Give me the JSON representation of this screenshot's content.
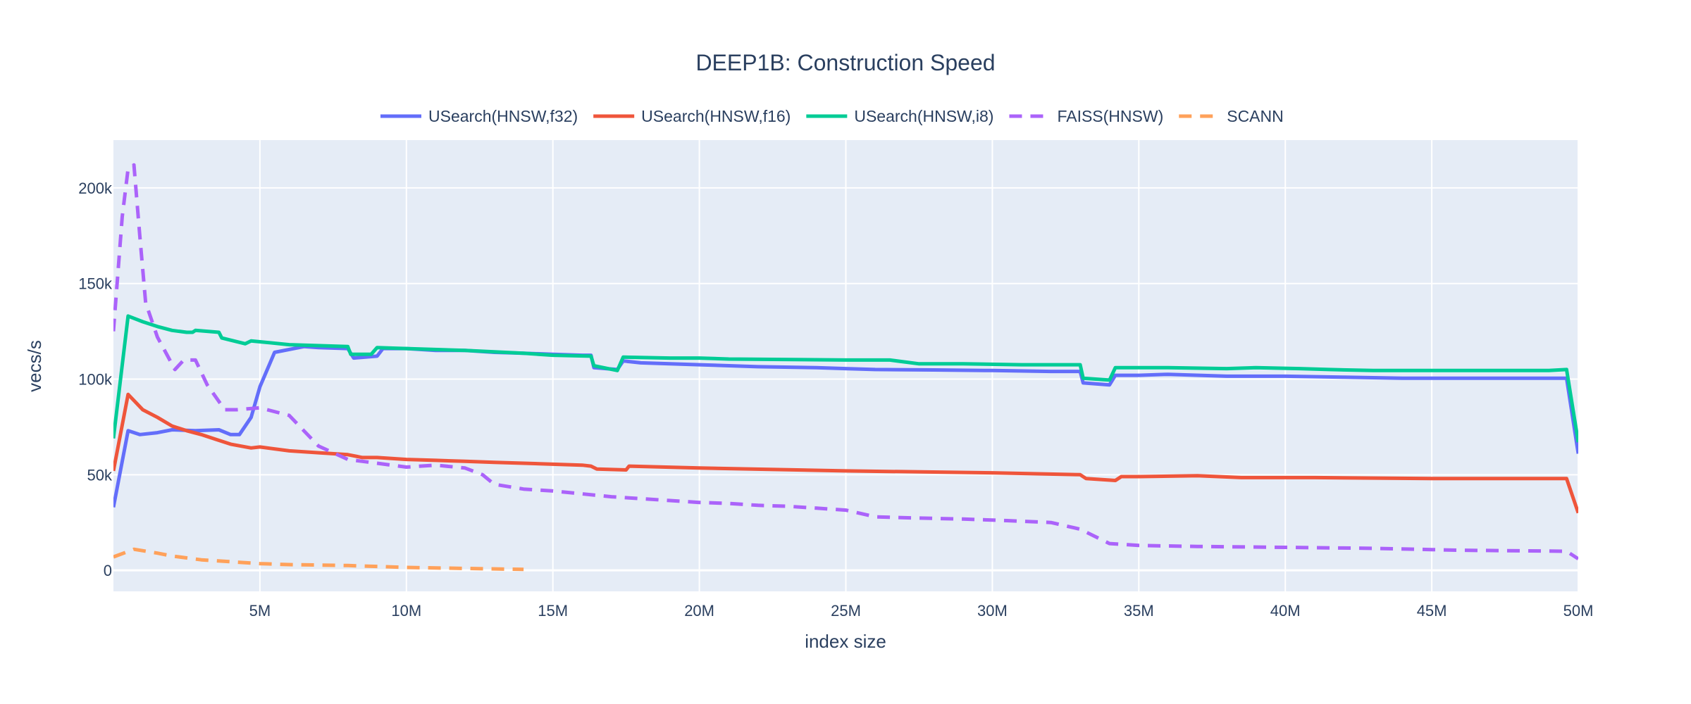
{
  "chart_data": {
    "type": "line",
    "title": "DEEP1B: Construction Speed",
    "xlabel": "index size",
    "ylabel": "vecs/s",
    "xlim": [
      0,
      50000000
    ],
    "ylim": [
      -11000,
      225000
    ],
    "xticks": [
      5000000,
      10000000,
      15000000,
      20000000,
      25000000,
      30000000,
      35000000,
      40000000,
      45000000,
      50000000
    ],
    "xtick_labels": [
      "5M",
      "10M",
      "15M",
      "20M",
      "25M",
      "30M",
      "35M",
      "40M",
      "45M",
      "50M"
    ],
    "yticks": [
      0,
      50000,
      100000,
      150000,
      200000
    ],
    "ytick_labels": [
      "0",
      "50k",
      "100k",
      "150k",
      "200k"
    ],
    "grid": true,
    "legend_position": "top-center",
    "series": [
      {
        "name": "USearch(HNSW,f32)",
        "color": "#636efa",
        "dash": "solid",
        "points": [
          [
            0,
            33000
          ],
          [
            500000,
            73000
          ],
          [
            900000,
            71000
          ],
          [
            1500000,
            72000
          ],
          [
            2000000,
            73500
          ],
          [
            2800000,
            73000
          ],
          [
            3600000,
            73500
          ],
          [
            4000000,
            71000
          ],
          [
            4300000,
            71000
          ],
          [
            4700000,
            80000
          ],
          [
            5000000,
            96000
          ],
          [
            5500000,
            114000
          ],
          [
            6500000,
            117000
          ],
          [
            7000000,
            116500
          ],
          [
            8000000,
            116000
          ],
          [
            8200000,
            111000
          ],
          [
            9000000,
            112000
          ],
          [
            9200000,
            116000
          ],
          [
            10000000,
            116000
          ],
          [
            11000000,
            115000
          ],
          [
            12000000,
            115000
          ],
          [
            13000000,
            114000
          ],
          [
            14000000,
            113500
          ],
          [
            15000000,
            113000
          ],
          [
            16000000,
            112500
          ],
          [
            16300000,
            112500
          ],
          [
            16400000,
            106000
          ],
          [
            17200000,
            105000
          ],
          [
            17400000,
            109500
          ],
          [
            18000000,
            108500
          ],
          [
            19000000,
            108000
          ],
          [
            20000000,
            107500
          ],
          [
            22000000,
            106500
          ],
          [
            24000000,
            106000
          ],
          [
            25000000,
            105500
          ],
          [
            26000000,
            105000
          ],
          [
            28000000,
            104800
          ],
          [
            30000000,
            104500
          ],
          [
            32000000,
            104000
          ],
          [
            33000000,
            104000
          ],
          [
            33100000,
            98000
          ],
          [
            34000000,
            97000
          ],
          [
            34200000,
            102000
          ],
          [
            35000000,
            102000
          ],
          [
            36000000,
            102500
          ],
          [
            38000000,
            101500
          ],
          [
            40000000,
            101500
          ],
          [
            42000000,
            101000
          ],
          [
            44000000,
            100500
          ],
          [
            46000000,
            100500
          ],
          [
            48000000,
            100500
          ],
          [
            49600000,
            100500
          ],
          [
            50000000,
            61000
          ]
        ]
      },
      {
        "name": "USearch(HNSW,f16)",
        "color": "#ef553b",
        "dash": "solid",
        "points": [
          [
            0,
            52000
          ],
          [
            500000,
            92000
          ],
          [
            1000000,
            84000
          ],
          [
            1500000,
            80000
          ],
          [
            2000000,
            75500
          ],
          [
            2500000,
            73000
          ],
          [
            3000000,
            71000
          ],
          [
            3500000,
            68500
          ],
          [
            4000000,
            66000
          ],
          [
            4700000,
            64000
          ],
          [
            5000000,
            64500
          ],
          [
            6000000,
            62500
          ],
          [
            7000000,
            61500
          ],
          [
            8000000,
            60500
          ],
          [
            8500000,
            59000
          ],
          [
            9000000,
            59000
          ],
          [
            10000000,
            58000
          ],
          [
            11000000,
            57500
          ],
          [
            12000000,
            57000
          ],
          [
            13000000,
            56500
          ],
          [
            14000000,
            56000
          ],
          [
            15000000,
            55500
          ],
          [
            16000000,
            55000
          ],
          [
            16300000,
            54500
          ],
          [
            16500000,
            53000
          ],
          [
            17500000,
            52500
          ],
          [
            17600000,
            54500
          ],
          [
            20000000,
            53500
          ],
          [
            25000000,
            52000
          ],
          [
            30000000,
            51000
          ],
          [
            33000000,
            50000
          ],
          [
            33200000,
            48000
          ],
          [
            34200000,
            47000
          ],
          [
            34400000,
            49000
          ],
          [
            35000000,
            49000
          ],
          [
            37000000,
            49500
          ],
          [
            38500000,
            48500
          ],
          [
            41000000,
            48500
          ],
          [
            45000000,
            48000
          ],
          [
            49600000,
            48000
          ],
          [
            50000000,
            30000
          ]
        ]
      },
      {
        "name": "USearch(HNSW,i8)",
        "color": "#00cc96",
        "dash": "solid",
        "points": [
          [
            0,
            69000
          ],
          [
            500000,
            133000
          ],
          [
            1000000,
            130000
          ],
          [
            1500000,
            127500
          ],
          [
            2000000,
            125500
          ],
          [
            2500000,
            124500
          ],
          [
            2700000,
            124500
          ],
          [
            2800000,
            125500
          ],
          [
            3600000,
            124500
          ],
          [
            3700000,
            121500
          ],
          [
            4500000,
            118500
          ],
          [
            4700000,
            120000
          ],
          [
            6000000,
            118000
          ],
          [
            8000000,
            117000
          ],
          [
            8100000,
            113000
          ],
          [
            8800000,
            113000
          ],
          [
            9000000,
            116500
          ],
          [
            10000000,
            116000
          ],
          [
            12000000,
            115000
          ],
          [
            14000000,
            113500
          ],
          [
            15000000,
            112500
          ],
          [
            16300000,
            112000
          ],
          [
            16400000,
            107000
          ],
          [
            17200000,
            104500
          ],
          [
            17400000,
            111500
          ],
          [
            19000000,
            111000
          ],
          [
            20000000,
            111000
          ],
          [
            21000000,
            110500
          ],
          [
            25000000,
            110000
          ],
          [
            26500000,
            110000
          ],
          [
            27500000,
            108000
          ],
          [
            29000000,
            108000
          ],
          [
            31000000,
            107500
          ],
          [
            33000000,
            107500
          ],
          [
            33100000,
            100500
          ],
          [
            34000000,
            99500
          ],
          [
            34200000,
            106000
          ],
          [
            36000000,
            106000
          ],
          [
            38000000,
            105500
          ],
          [
            39000000,
            106000
          ],
          [
            40500000,
            105500
          ],
          [
            41500000,
            105000
          ],
          [
            43000000,
            104500
          ],
          [
            45000000,
            104500
          ],
          [
            47000000,
            104500
          ],
          [
            49000000,
            104500
          ],
          [
            49600000,
            105000
          ],
          [
            50000000,
            67000
          ]
        ]
      },
      {
        "name": "FAISS(HNSW)",
        "color": "#ab63fa",
        "dash": "dash",
        "points": [
          [
            0,
            125000
          ],
          [
            300000,
            185000
          ],
          [
            500000,
            210000
          ],
          [
            700000,
            212000
          ],
          [
            900000,
            175000
          ],
          [
            1100000,
            140000
          ],
          [
            1500000,
            122000
          ],
          [
            2100000,
            105000
          ],
          [
            2400000,
            110000
          ],
          [
            2800000,
            110000
          ],
          [
            3200000,
            97000
          ],
          [
            3800000,
            84000
          ],
          [
            4200000,
            84000
          ],
          [
            5000000,
            85000
          ],
          [
            6000000,
            81000
          ],
          [
            7000000,
            65000
          ],
          [
            8000000,
            58000
          ],
          [
            9000000,
            56000
          ],
          [
            10000000,
            54000
          ],
          [
            11000000,
            55000
          ],
          [
            12000000,
            53500
          ],
          [
            12600000,
            50000
          ],
          [
            13000000,
            45000
          ],
          [
            14000000,
            42500
          ],
          [
            15000000,
            41500
          ],
          [
            16000000,
            40000
          ],
          [
            17000000,
            38500
          ],
          [
            18000000,
            37500
          ],
          [
            19000000,
            36500
          ],
          [
            20000000,
            35500
          ],
          [
            21000000,
            35000
          ],
          [
            22000000,
            34000
          ],
          [
            23000000,
            33500
          ],
          [
            24000000,
            32500
          ],
          [
            25000000,
            31500
          ],
          [
            26000000,
            28000
          ],
          [
            27000000,
            27500
          ],
          [
            29000000,
            26800
          ],
          [
            30500000,
            26000
          ],
          [
            32000000,
            25000
          ],
          [
            33000000,
            21500
          ],
          [
            34000000,
            14000
          ],
          [
            35000000,
            13000
          ],
          [
            37000000,
            12500
          ],
          [
            40000000,
            12000
          ],
          [
            43000000,
            11500
          ],
          [
            46000000,
            10500
          ],
          [
            49600000,
            10000
          ],
          [
            50000000,
            6000
          ]
        ]
      },
      {
        "name": "SCANN",
        "color": "#ffa15a",
        "dash": "dash",
        "points": [
          [
            0,
            7000
          ],
          [
            700000,
            11000
          ],
          [
            1500000,
            9000
          ],
          [
            2000000,
            7500
          ],
          [
            3000000,
            5500
          ],
          [
            4000000,
            4500
          ],
          [
            5000000,
            3500
          ],
          [
            6000000,
            3000
          ],
          [
            8000000,
            2500
          ],
          [
            10000000,
            1500
          ],
          [
            12000000,
            1000
          ],
          [
            14000000,
            500
          ]
        ]
      }
    ]
  }
}
